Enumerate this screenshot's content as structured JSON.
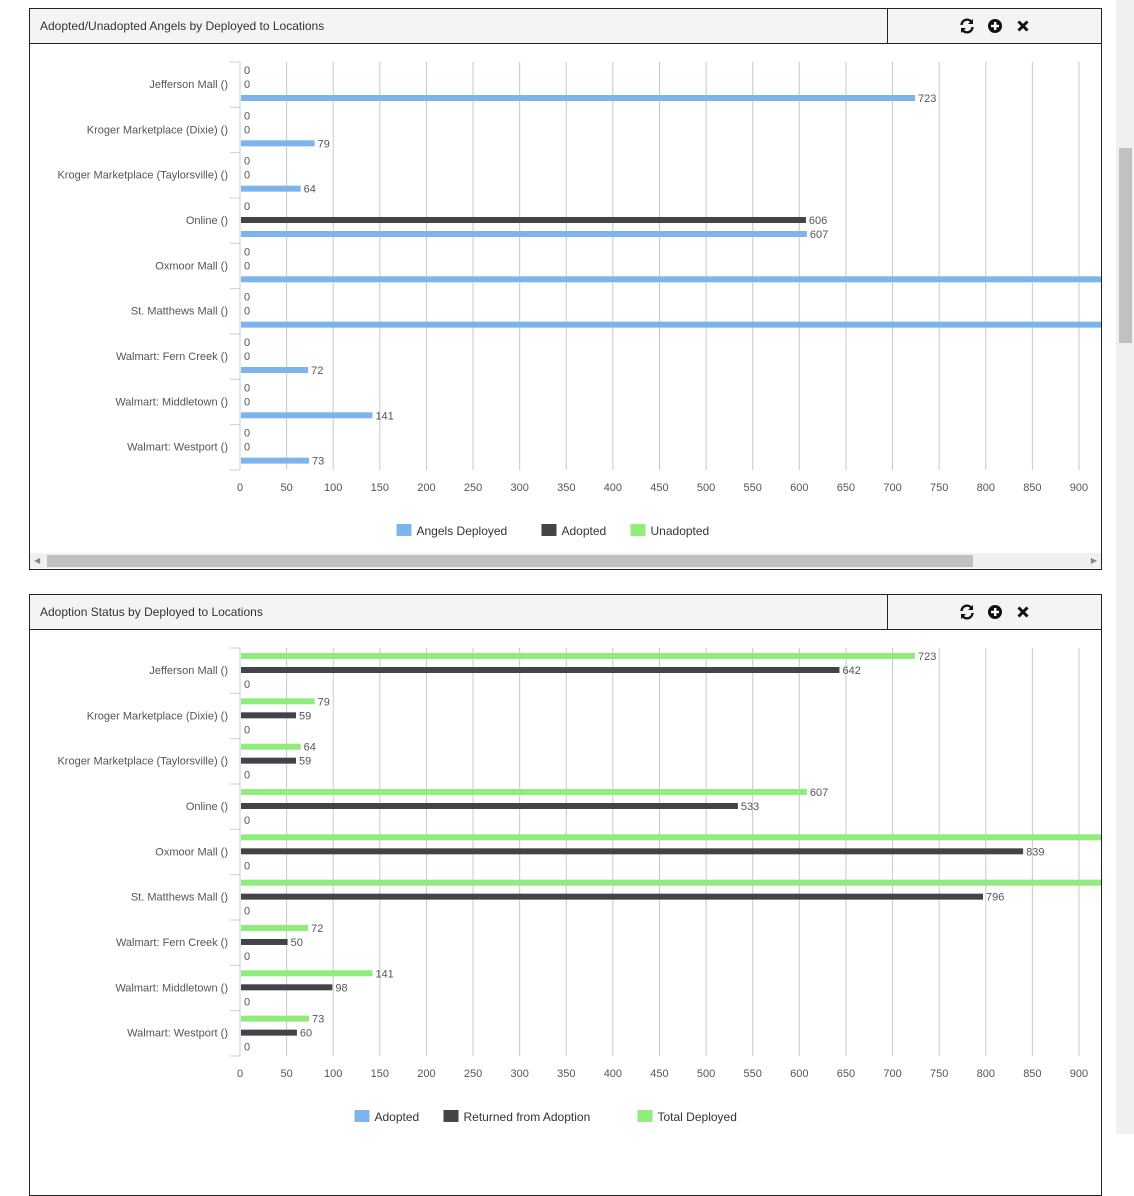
{
  "panels": [
    {
      "title": "Adopted/Unadopted Angels by Deployed to Locations",
      "tools": [
        "refresh-icon",
        "plus-circle-icon",
        "close-icon"
      ]
    },
    {
      "title": "Adoption Status by Deployed to Locations",
      "tools": [
        "refresh-icon",
        "plus-circle-icon",
        "close-icon"
      ]
    }
  ],
  "chart_data": [
    {
      "type": "bar",
      "orientation": "horizontal",
      "categories": [
        "Jefferson Mall ()",
        "Kroger Marketplace (Dixie) ()",
        "Kroger Marketplace (Taylorsville) ()",
        "Online ()",
        "Oxmoor Mall ()",
        "St. Matthews Mall ()",
        "Walmart: Fern Creek ()",
        "Walmart: Middletown ()",
        "Walmart: Westport ()"
      ],
      "series": [
        {
          "name": "Angels Deployed",
          "color": "#7cb5ec",
          "values": [
            723,
            79,
            64,
            607,
            null,
            null,
            72,
            141,
            73
          ]
        },
        {
          "name": "Adopted",
          "color": "#434348",
          "values": [
            0,
            0,
            0,
            606,
            0,
            0,
            0,
            0,
            0
          ]
        },
        {
          "name": "Unadopted",
          "color": "#90ed7d",
          "values": [
            0,
            0,
            0,
            0,
            0,
            0,
            0,
            0,
            0
          ]
        }
      ],
      "xticks": [
        "0",
        "50",
        "100",
        "150",
        "200",
        "250",
        "300",
        "350",
        "400",
        "450",
        "500",
        "550",
        "600",
        "650",
        "700",
        "750",
        "800",
        "850",
        "900"
      ],
      "xlim": [
        0,
        922
      ],
      "grid": true,
      "legend": "bottom"
    },
    {
      "type": "bar",
      "orientation": "horizontal",
      "categories": [
        "Jefferson Mall ()",
        "Kroger Marketplace (Dixie) ()",
        "Kroger Marketplace (Taylorsville) ()",
        "Online ()",
        "Oxmoor Mall ()",
        "St. Matthews Mall ()",
        "Walmart: Fern Creek ()",
        "Walmart: Middletown ()",
        "Walmart: Westport ()"
      ],
      "series": [
        {
          "name": "Adopted",
          "color": "#7cb5ec",
          "values": [
            0,
            0,
            0,
            0,
            0,
            0,
            0,
            0,
            0
          ]
        },
        {
          "name": "Returned from Adoption",
          "color": "#434348",
          "values": [
            642,
            59,
            59,
            533,
            839,
            796,
            50,
            98,
            60
          ]
        },
        {
          "name": "Total Deployed",
          "color": "#90ed7d",
          "values": [
            723,
            79,
            64,
            607,
            null,
            null,
            72,
            141,
            73
          ]
        }
      ],
      "xticks": [
        "0",
        "50",
        "100",
        "150",
        "200",
        "250",
        "300",
        "350",
        "400",
        "450",
        "500",
        "550",
        "600",
        "650",
        "700",
        "750",
        "800",
        "850",
        "900"
      ],
      "xlim": [
        0,
        922
      ],
      "grid": true,
      "legend": "bottom"
    }
  ]
}
